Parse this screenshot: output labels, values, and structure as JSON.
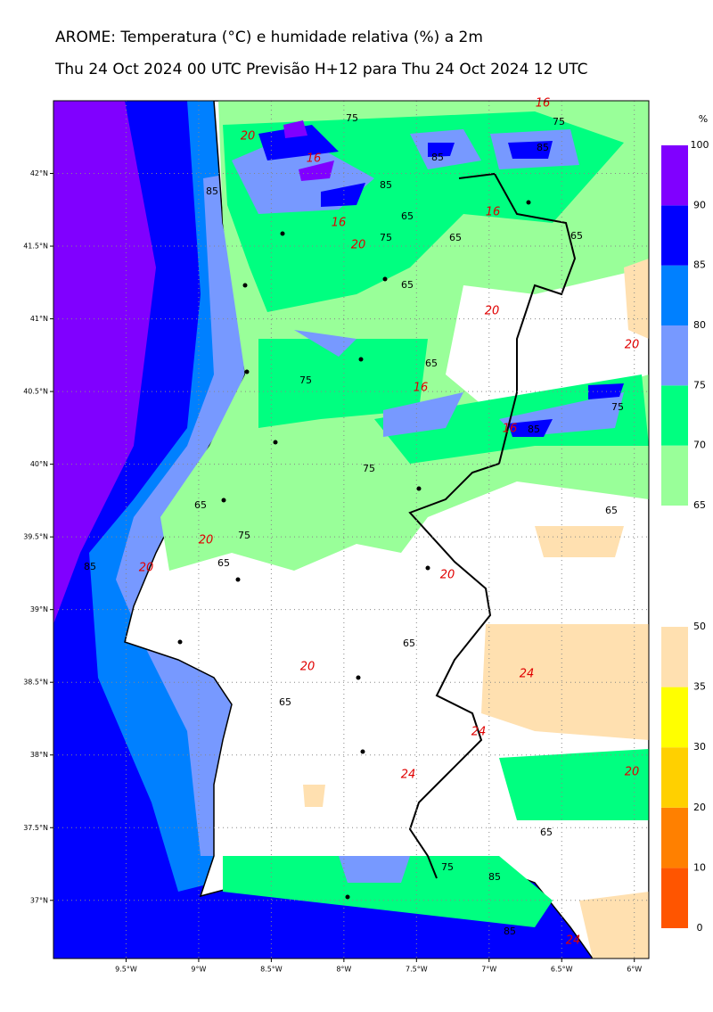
{
  "header": {
    "title": "AROME: Temperatura (°C) e humidade relativa (%) a 2m",
    "subtitle": "Thu 24 Oct 2024 00 UTC Previsão H+12 para Thu 24 Oct 2024 12 UTC"
  },
  "map": {
    "xlim": [
      -10.0,
      -5.9
    ],
    "ylim": [
      36.6,
      42.5
    ],
    "xticks": [
      {
        "value": -9.5,
        "label": "9.5°W"
      },
      {
        "value": -9,
        "label": "9°W"
      },
      {
        "value": -8.5,
        "label": "8.5°W"
      },
      {
        "value": -8,
        "label": "8°W"
      },
      {
        "value": -7.5,
        "label": "7.5°W"
      },
      {
        "value": -7,
        "label": "7°W"
      },
      {
        "value": -6.5,
        "label": "6.5°W"
      },
      {
        "value": -6,
        "label": "6°W"
      }
    ],
    "yticks": [
      {
        "value": 37,
        "label": "37°N"
      },
      {
        "value": 37.5,
        "label": "37.5°N"
      },
      {
        "value": 38,
        "label": "38°N"
      },
      {
        "value": 38.5,
        "label": "38.5°N"
      },
      {
        "value": 39,
        "label": "39°N"
      },
      {
        "value": 39.5,
        "label": "39.5°N"
      },
      {
        "value": 40,
        "label": "40°N"
      },
      {
        "value": 40.5,
        "label": "40.5°N"
      },
      {
        "value": 41,
        "label": "41°N"
      },
      {
        "value": 41.5,
        "label": "41.5°N"
      },
      {
        "value": 42,
        "label": "42°N"
      }
    ],
    "grid": true,
    "humidity_contour_labels": [
      75,
      75,
      85,
      85,
      85,
      85,
      65,
      75,
      65,
      65,
      65,
      65,
      75,
      75,
      85,
      75,
      65,
      75,
      65,
      85,
      65,
      65,
      65,
      65,
      75,
      85,
      85
    ],
    "temperature_contour_labels": [
      16,
      20,
      16,
      16,
      16,
      20,
      20,
      20,
      16,
      16,
      20,
      20,
      20,
      20,
      24,
      24,
      24,
      20,
      24
    ]
  },
  "colorbars": [
    {
      "unit": "%",
      "levels": [
        65,
        70,
        75,
        80,
        85,
        90,
        100
      ],
      "colors": [
        "#99ff99",
        "#00ff80",
        "#7799ff",
        "#0080ff",
        "#0000ff",
        "#8000ff"
      ]
    },
    {
      "levels": [
        0,
        10,
        20,
        30,
        35,
        50
      ],
      "colors": [
        "#ff5500",
        "#ff8000",
        "#ffd000",
        "#ffff00",
        "#ffe0b0"
      ]
    }
  ]
}
